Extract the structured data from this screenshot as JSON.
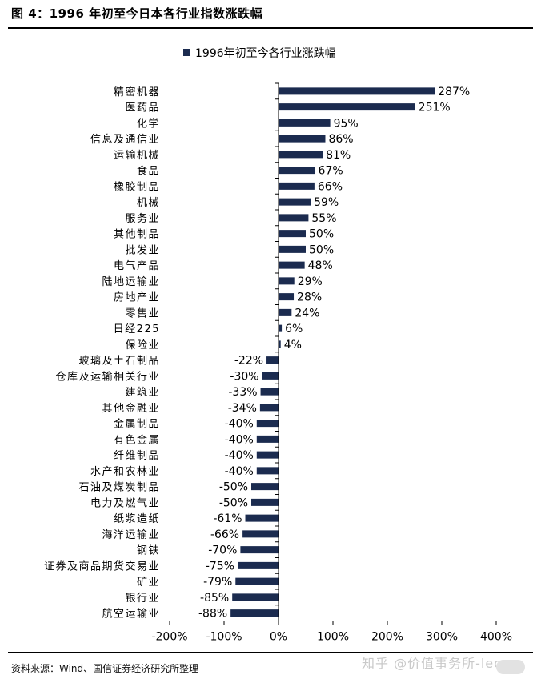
{
  "figure": {
    "title": "图 4：1996 年初至今日本各行业指数涨跌幅",
    "source": "资料来源：Wind、国信证券经济研究所整理",
    "watermark": "知乎 @价值事务所-leo"
  },
  "colors": {
    "bar": "#1b2b4f",
    "axis": "#000000",
    "text": "#000000"
  },
  "chart_data": {
    "type": "bar",
    "orientation": "horizontal",
    "legend": "top-center",
    "grid": false,
    "xlim": [
      -200,
      400
    ],
    "x_ticks": [
      -200,
      -100,
      0,
      100,
      200,
      300,
      400
    ],
    "x_tick_labels": [
      "-200%",
      "-100%",
      "0%",
      "100%",
      "200%",
      "300%",
      "400%"
    ],
    "series": [
      {
        "name": "1996年初至今各行业涨跌幅",
        "categories": [
          "精密机器",
          "医药品",
          "化学",
          "信息及通信业",
          "运输机械",
          "食品",
          "橡胶制品",
          "机械",
          "服务业",
          "其他制品",
          "批发业",
          "电气产品",
          "陆地运输业",
          "房地产业",
          "零售业",
          "日经225",
          "保险业",
          "玻璃及土石制品",
          "仓库及运输相关行业",
          "建筑业",
          "其他金融业",
          "金属制品",
          "有色金属",
          "纤维制品",
          "水产和农林业",
          "石油及煤炭制品",
          "电力及燃气业",
          "纸浆造纸",
          "海洋运输业",
          "钢铁",
          "证券及商品期货交易业",
          "矿业",
          "银行业",
          "航空运输业"
        ],
        "values": [
          287,
          251,
          95,
          86,
          81,
          67,
          66,
          59,
          55,
          50,
          50,
          48,
          29,
          28,
          24,
          6,
          4,
          -22,
          -30,
          -33,
          -34,
          -40,
          -40,
          -40,
          -40,
          -50,
          -50,
          -61,
          -66,
          -70,
          -75,
          -79,
          -85,
          -88
        ],
        "value_labels": [
          "287%",
          "251%",
          "95%",
          "86%",
          "81%",
          "67%",
          "66%",
          "59%",
          "55%",
          "50%",
          "50%",
          "48%",
          "29%",
          "28%",
          "24%",
          "6%",
          "4%",
          "-22%",
          "-30%",
          "-33%",
          "-34%",
          "-40%",
          "-40%",
          "-40%",
          "-40%",
          "-50%",
          "-50%",
          "-61%",
          "-66%",
          "-70%",
          "-75%",
          "-79%",
          "-85%",
          "-88%"
        ]
      }
    ]
  }
}
